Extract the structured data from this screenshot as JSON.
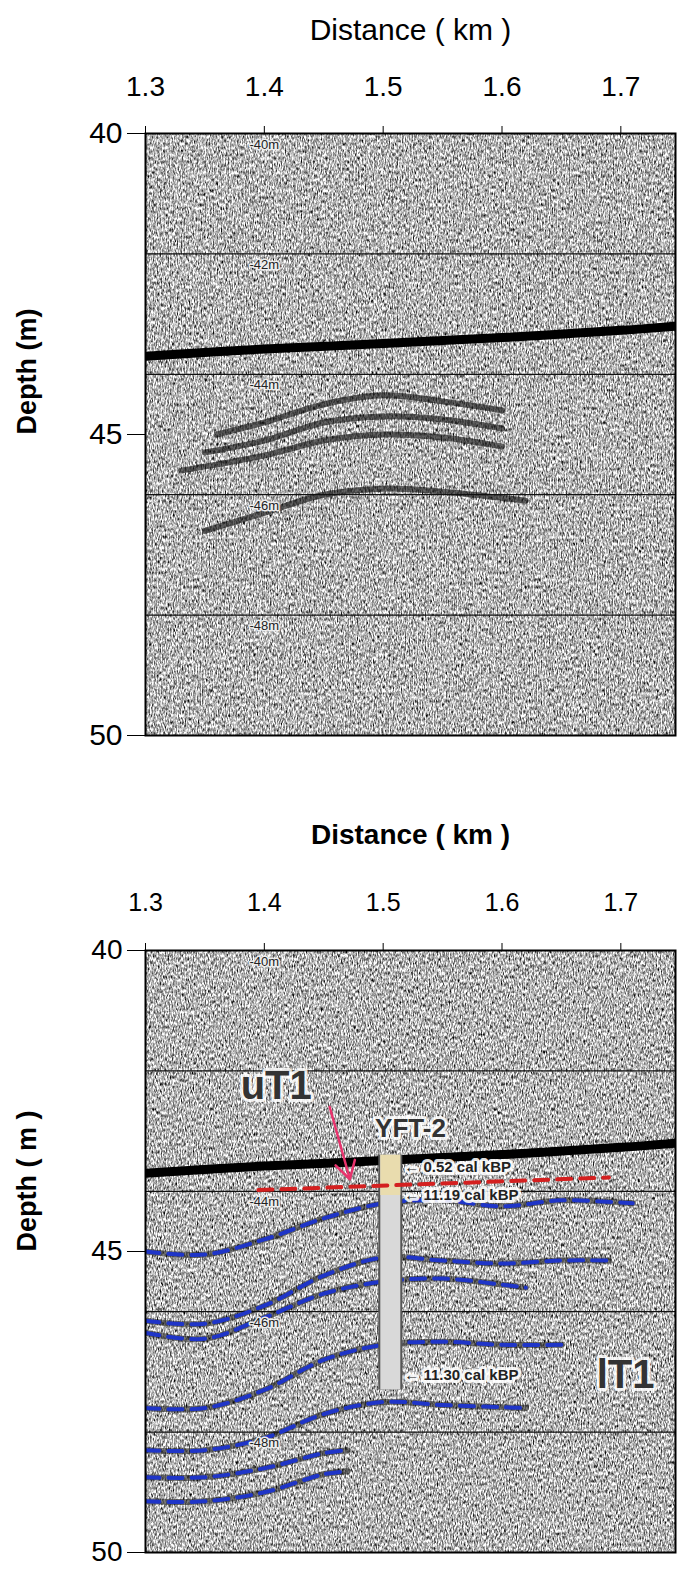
{
  "chart_data": [
    {
      "type": "line",
      "x_label": "Distance ( km )",
      "y_label": "Depth (m)",
      "xlim": [
        1.3,
        1.746
      ],
      "xticks": [
        1.3,
        1.4,
        1.5,
        1.6,
        1.7
      ],
      "ylim": [
        40,
        50
      ],
      "yticks": [
        40,
        45,
        50
      ],
      "grid_lines": [
        42,
        44,
        46,
        48
      ],
      "depth_marks": [
        {
          "x": 1.4,
          "value": 40,
          "label": "-40m"
        },
        {
          "x": 1.4,
          "value": 42,
          "label": "-42m"
        },
        {
          "x": 1.4,
          "value": 44,
          "label": "-44m"
        },
        {
          "x": 1.4,
          "value": 46,
          "label": "-46m"
        },
        {
          "x": 1.4,
          "value": 48,
          "label": "-48m"
        }
      ],
      "seafloor": {
        "color": "#000000",
        "x": [
          1.3,
          1.4,
          1.5,
          1.6,
          1.7,
          1.746
        ],
        "y": [
          43.7,
          43.58,
          43.49,
          43.39,
          43.27,
          43.2
        ]
      },
      "reflectors": [
        {
          "x": [
            1.36,
            1.4,
            1.45,
            1.5,
            1.55,
            1.6
          ],
          "y": [
            45.0,
            44.8,
            44.5,
            44.35,
            44.45,
            44.6
          ]
        },
        {
          "x": [
            1.35,
            1.4,
            1.45,
            1.5,
            1.55,
            1.6
          ],
          "y": [
            45.3,
            45.1,
            44.8,
            44.7,
            44.75,
            44.9
          ]
        },
        {
          "x": [
            1.33,
            1.4,
            1.45,
            1.5,
            1.55,
            1.6
          ],
          "y": [
            45.6,
            45.35,
            45.1,
            45.0,
            45.05,
            45.2
          ]
        },
        {
          "x": [
            1.35,
            1.4,
            1.45,
            1.5,
            1.55,
            1.62
          ],
          "y": [
            46.6,
            46.3,
            46.0,
            45.9,
            45.95,
            46.1
          ]
        }
      ]
    },
    {
      "type": "line",
      "x_label": "Distance ( km )",
      "y_label": "Depth ( m )",
      "xlim": [
        1.3,
        1.746
      ],
      "xticks": [
        1.3,
        1.4,
        1.5,
        1.6,
        1.7
      ],
      "ylim": [
        40,
        50
      ],
      "yticks": [
        40,
        45,
        50
      ],
      "grid_lines": [
        42,
        44,
        46,
        48
      ],
      "depth_marks": [
        {
          "x": 1.4,
          "value": 40,
          "label": "-40m"
        },
        {
          "x": 1.4,
          "value": 44,
          "label": "-44m"
        },
        {
          "x": 1.4,
          "value": 46,
          "label": "-46m"
        },
        {
          "x": 1.4,
          "value": 48,
          "label": "-48m"
        }
      ],
      "seafloor": {
        "color": "#000000",
        "x": [
          1.3,
          1.4,
          1.5,
          1.6,
          1.7,
          1.746
        ],
        "y": [
          43.7,
          43.58,
          43.49,
          43.39,
          43.27,
          43.2
        ]
      },
      "horizons": {
        "color": "#1f35c8",
        "line_style": "dashed",
        "lines": [
          {
            "x": [
              1.3,
              1.35,
              1.4,
              1.45,
              1.5,
              1.55,
              1.6,
              1.65,
              1.71
            ],
            "y": [
              45.0,
              45.05,
              44.8,
              44.45,
              44.2,
              44.15,
              44.25,
              44.15,
              44.2
            ]
          },
          {
            "x": [
              1.3,
              1.35,
              1.4,
              1.45,
              1.5,
              1.55,
              1.6,
              1.65,
              1.69
            ],
            "y": [
              46.15,
              46.2,
              45.9,
              45.4,
              45.1,
              45.15,
              45.2,
              45.15,
              45.15
            ]
          },
          {
            "x": [
              1.3,
              1.35,
              1.4,
              1.45,
              1.5,
              1.55,
              1.6,
              1.62
            ],
            "y": [
              46.35,
              46.45,
              46.1,
              45.7,
              45.5,
              45.45,
              45.55,
              45.6
            ]
          },
          {
            "x": [
              1.3,
              1.35,
              1.4,
              1.45,
              1.5,
              1.55,
              1.6,
              1.65
            ],
            "y": [
              47.6,
              47.6,
              47.3,
              46.8,
              46.55,
              46.5,
              46.55,
              46.55
            ]
          },
          {
            "x": [
              1.3,
              1.35,
              1.4,
              1.45,
              1.5,
              1.55,
              1.62
            ],
            "y": [
              48.3,
              48.3,
              48.1,
              47.7,
              47.5,
              47.55,
              47.6
            ]
          },
          {
            "x": [
              1.3,
              1.35,
              1.4,
              1.45,
              1.47
            ],
            "y": [
              48.75,
              48.75,
              48.6,
              48.35,
              48.3
            ]
          },
          {
            "x": [
              1.3,
              1.35,
              1.4,
              1.45,
              1.47
            ],
            "y": [
              49.15,
              49.15,
              49.0,
              48.7,
              48.65
            ]
          }
        ]
      },
      "boundary": {
        "label": "uT1",
        "color": "#d42020",
        "line_style": "dashed",
        "x": [
          1.395,
          1.69
        ],
        "y": [
          43.98,
          43.77
        ],
        "label_x": 1.41,
        "label_y": 42.25,
        "arrow": {
          "x1": 1.455,
          "y1": 42.6,
          "x2": 1.472,
          "y2": 43.8,
          "color": "#e8336d"
        }
      },
      "core": {
        "name": "YFT-2",
        "x": 1.506,
        "top": 43.4,
        "bottom": 47.3,
        "name_x": 1.523,
        "name_y": 42.96,
        "dates": [
          {
            "label": "← 0.52 cal kBP",
            "depth": 43.6
          },
          {
            "label": "← 11.19 cal kBP",
            "depth": 44.07
          },
          {
            "label": "← 11.30 cal kBP",
            "depth": 47.05
          }
        ]
      },
      "unit_label": {
        "text": "lT1",
        "x": 1.704,
        "y": 47.05
      }
    }
  ]
}
